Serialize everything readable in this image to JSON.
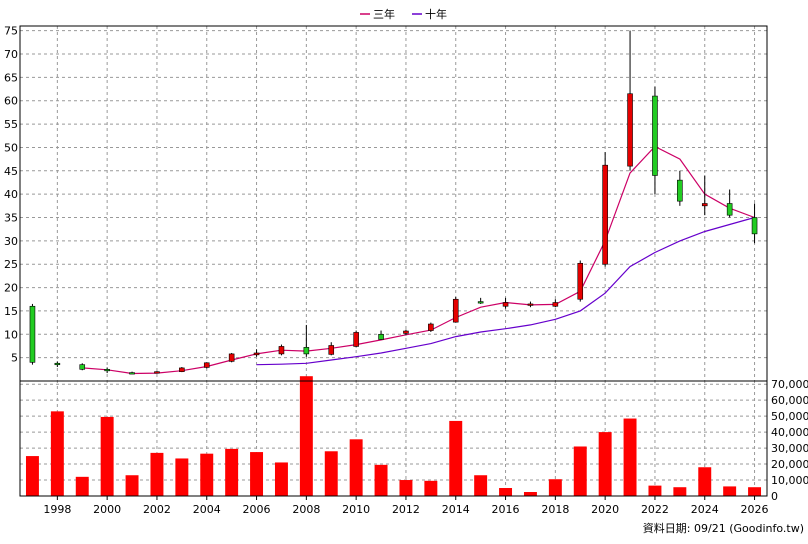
{
  "legend": [
    {
      "label": "三年",
      "color": "#cc0066"
    },
    {
      "label": "十年",
      "color": "#6600cc"
    }
  ],
  "footer": "資料日期: 09/21 (Goodinfo.tw)",
  "colors": {
    "up": "#e60000",
    "down": "#22cc22",
    "wick": "#000000",
    "volume": "#ff0000",
    "grid": "#999999"
  },
  "chart_data": [
    {
      "type": "candlestick",
      "title": "",
      "x": [
        1997,
        1998,
        1999,
        2000,
        2001,
        2002,
        2003,
        2004,
        2005,
        2006,
        2007,
        2008,
        2009,
        2010,
        2011,
        2012,
        2013,
        2014,
        2015,
        2016,
        2017,
        2018,
        2019,
        2020,
        2021,
        2022,
        2023,
        2024,
        2025,
        2026
      ],
      "open": [
        16.0,
        3.8,
        3.5,
        2.5,
        1.8,
        1.9,
        2.0,
        2.9,
        4.2,
        5.6,
        5.8,
        7.2,
        5.7,
        7.4,
        10.0,
        10.2,
        10.8,
        12.6,
        17.0,
        16.0,
        16.5,
        16.0,
        17.5,
        25.0,
        46.0,
        61.0,
        43.0,
        37.5,
        38.0,
        35.0
      ],
      "high": [
        16.5,
        4.2,
        3.8,
        2.9,
        2.0,
        2.1,
        3.0,
        4.0,
        6.0,
        6.8,
        7.8,
        12.0,
        8.3,
        10.8,
        10.8,
        11.0,
        12.5,
        18.0,
        17.8,
        17.8,
        17.0,
        17.5,
        25.8,
        49.0,
        75.0,
        63.0,
        45.0,
        44.0,
        41.0,
        38.0
      ],
      "low": [
        3.5,
        3.0,
        2.3,
        1.7,
        1.5,
        1.6,
        1.9,
        2.7,
        4.0,
        5.2,
        5.5,
        5.2,
        5.5,
        7.2,
        8.8,
        9.8,
        10.5,
        12.5,
        16.5,
        15.5,
        15.8,
        15.8,
        17.0,
        24.5,
        45.0,
        40.0,
        37.5,
        35.5,
        35.0,
        29.5
      ],
      "close": [
        4.0,
        3.7,
        2.5,
        2.2,
        1.6,
        2.0,
        2.8,
        3.9,
        5.8,
        6.0,
        7.4,
        5.8,
        7.6,
        10.4,
        8.9,
        10.7,
        12.2,
        17.5,
        16.8,
        16.8,
        16.5,
        16.8,
        25.2,
        46.2,
        61.5,
        44.0,
        38.5,
        38.0,
        35.5,
        31.5
      ],
      "series": [
        {
          "name": "三年",
          "x": [
            1999,
            2000,
            2001,
            2002,
            2003,
            2004,
            2005,
            2006,
            2007,
            2008,
            2009,
            2010,
            2011,
            2012,
            2013,
            2014,
            2015,
            2016,
            2017,
            2018,
            2019,
            2020,
            2021,
            2022,
            2023,
            2024,
            2025,
            2026
          ],
          "values": [
            2.8,
            2.4,
            1.6,
            1.7,
            2.2,
            3.1,
            4.5,
            5.8,
            6.6,
            6.4,
            7.0,
            7.8,
            8.8,
            9.9,
            10.9,
            13.6,
            15.8,
            16.8,
            16.3,
            16.4,
            19.2,
            30.0,
            44.5,
            50.2,
            47.5,
            40.0,
            37.0,
            35.0
          ]
        },
        {
          "name": "十年",
          "x": [
            2006,
            2007,
            2008,
            2009,
            2010,
            2011,
            2012,
            2013,
            2014,
            2015,
            2016,
            2017,
            2018,
            2019,
            2020,
            2021,
            2022,
            2023,
            2024,
            2025,
            2026
          ],
          "values": [
            3.5,
            3.6,
            3.8,
            4.5,
            5.2,
            6.0,
            7.0,
            8.0,
            9.5,
            10.5,
            11.2,
            12.0,
            13.2,
            15.0,
            18.8,
            24.5,
            27.5,
            30.0,
            32.0,
            33.5,
            35.0
          ]
        }
      ],
      "ylim": [
        0,
        76
      ],
      "yticks": [
        5,
        10,
        15,
        20,
        25,
        30,
        35,
        40,
        45,
        50,
        55,
        60,
        65,
        70,
        75
      ],
      "grid": true,
      "legend_position": "top-center"
    },
    {
      "type": "bar",
      "x": [
        1997,
        1998,
        1999,
        2000,
        2001,
        2002,
        2003,
        2004,
        2005,
        2006,
        2007,
        2008,
        2009,
        2010,
        2011,
        2012,
        2013,
        2014,
        2015,
        2016,
        2017,
        2018,
        2019,
        2020,
        2021,
        2022,
        2023,
        2024,
        2025,
        2026
      ],
      "values": [
        25000,
        53000,
        12000,
        49500,
        13000,
        27000,
        23500,
        26500,
        29500,
        27500,
        21000,
        75000,
        28000,
        35500,
        19500,
        10000,
        9500,
        47000,
        13000,
        5000,
        2500,
        10500,
        31000,
        40000,
        48500,
        6500,
        5500,
        18000,
        6000,
        5500
      ],
      "ylim": [
        0,
        72000
      ],
      "yticks": [
        0,
        10000,
        20000,
        30000,
        40000,
        50000,
        60000,
        70000
      ],
      "ytick_labels": [
        "0",
        "10,000",
        "20,000",
        "30,000",
        "40,000",
        "50,000",
        "60,000",
        "70,000"
      ],
      "xticks": [
        1998,
        2000,
        2002,
        2004,
        2006,
        2008,
        2010,
        2012,
        2014,
        2016,
        2018,
        2020,
        2022,
        2024,
        2026
      ],
      "grid": true
    }
  ]
}
